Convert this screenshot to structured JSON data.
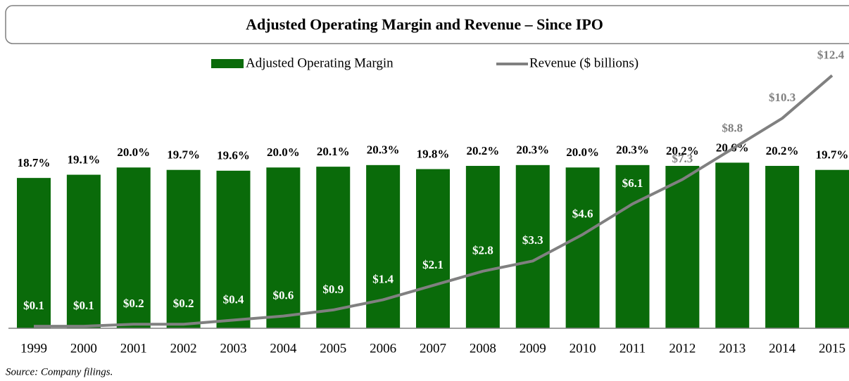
{
  "chart_data": {
    "type": "bar",
    "title": "Adjusted Operating Margin and Revenue – Since IPO",
    "source": "Source: Company filings.",
    "categories": [
      "1999",
      "2000",
      "2001",
      "2002",
      "2003",
      "2004",
      "2005",
      "2006",
      "2007",
      "2008",
      "2009",
      "2010",
      "2011",
      "2012",
      "2013",
      "2014",
      "2015"
    ],
    "series": [
      {
        "name": "Adjusted Operating Margin",
        "type": "bar",
        "color": "#0a6b0a",
        "values": [
          18.7,
          19.1,
          20.0,
          19.7,
          19.6,
          20.0,
          20.1,
          20.3,
          19.8,
          20.2,
          20.3,
          20.0,
          20.3,
          20.2,
          20.6,
          20.2,
          19.7
        ],
        "value_labels": [
          "18.7%",
          "19.1%",
          "20.0%",
          "19.7%",
          "19.6%",
          "20.0%",
          "20.1%",
          "20.3%",
          "19.8%",
          "20.2%",
          "20.3%",
          "20.0%",
          "20.3%",
          "20.2%",
          "20.6%",
          "20.2%",
          "19.7%"
        ]
      },
      {
        "name": "Revenue ($ billions)",
        "type": "line",
        "axis": "y2",
        "color": "#808080",
        "values": [
          0.1,
          0.1,
          0.2,
          0.2,
          0.4,
          0.6,
          0.9,
          1.4,
          2.1,
          2.8,
          3.3,
          4.6,
          6.1,
          7.3,
          8.8,
          10.3,
          12.4
        ],
        "value_labels": [
          "$0.1",
          "$0.1",
          "$0.2",
          "$0.2",
          "$0.4",
          "$0.6",
          "$0.9",
          "$1.4",
          "$2.1",
          "$2.8",
          "$3.3",
          "$4.6",
          "$6.1",
          "$7.3",
          "$8.8",
          "$10.3",
          "$12.4"
        ]
      }
    ],
    "ylim": [
      0,
      35.5
    ],
    "y2lim": [
      0,
      14
    ]
  }
}
